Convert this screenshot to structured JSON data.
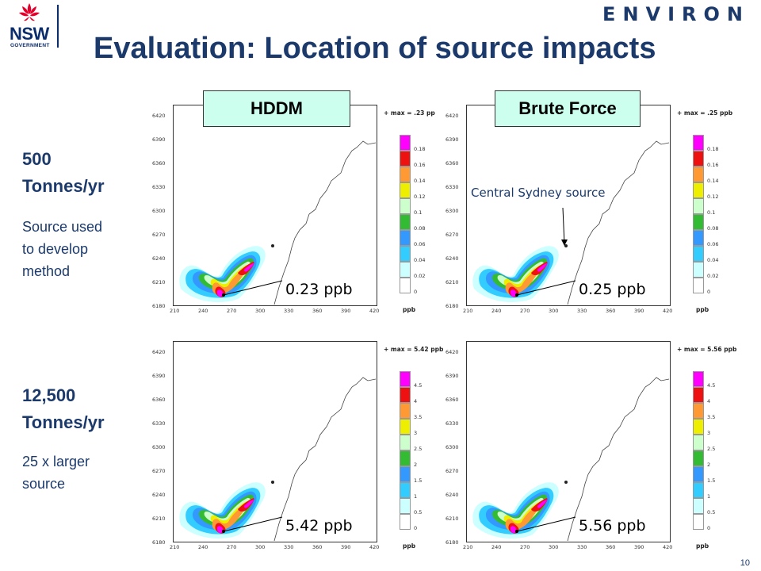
{
  "header": {
    "title": "Evaluation: Location of source impacts",
    "logo_left": {
      "line1": "NSW",
      "line2": "GOVERNMENT"
    },
    "logo_right": "ENVIRON"
  },
  "columns": {
    "left_method": "HDDM",
    "right_method": "Brute Force"
  },
  "rows": [
    {
      "heading_line1": "500",
      "heading_line2": "Tonnes/yr",
      "note": [
        "Source used",
        "to develop",
        "method"
      ]
    },
    {
      "heading_line1": "12,500",
      "heading_line2": "Tonnes/yr",
      "note": [
        "25 x larger",
        "source"
      ]
    }
  ],
  "annotation": {
    "central_source": "Central Sydney source"
  },
  "axes": {
    "y_ticks": [
      "6420",
      "6390",
      "6360",
      "6330",
      "6300",
      "6270",
      "6240",
      "6210",
      "6180"
    ],
    "x_ticks": [
      "210",
      "240",
      "270",
      "300",
      "330",
      "360",
      "390",
      "420"
    ],
    "unit": "ppb"
  },
  "panels": [
    {
      "id": "top-left",
      "max_label": "max = .23 pp",
      "callout": "0.23 ppb",
      "legend_labels": [
        "0.18",
        "0.16",
        "0.14",
        "0.12",
        "0.1",
        "0.08",
        "0.06",
        "0.04",
        "0.02",
        "0"
      ]
    },
    {
      "id": "top-right",
      "max_label": "max = .25 ppb",
      "callout": "0.25 ppb",
      "legend_labels": [
        "0.18",
        "0.16",
        "0.14",
        "0.12",
        "0.1",
        "0.08",
        "0.06",
        "0.04",
        "0.02",
        "0"
      ]
    },
    {
      "id": "bottom-left",
      "max_label": "max = 5.42 ppb",
      "callout": "5.42 ppb",
      "legend_labels": [
        "4.5",
        "4",
        "3.5",
        "3",
        "2.5",
        "2",
        "1.5",
        "1",
        "0.5",
        "0"
      ]
    },
    {
      "id": "bottom-right",
      "max_label": "max = 5.56 ppb",
      "callout": "5.56 ppb",
      "legend_labels": [
        "4.5",
        "4",
        "3.5",
        "3",
        "2.5",
        "2",
        "1.5",
        "1",
        "0.5",
        "0"
      ]
    }
  ],
  "legend_colors": [
    "#ff00ff",
    "#ee1111",
    "#ff9933",
    "#eeee00",
    "#ccffcc",
    "#33bb33",
    "#3399ff",
    "#33ccff",
    "#ccffff",
    "#ffffff"
  ],
  "slide_number": "10"
}
